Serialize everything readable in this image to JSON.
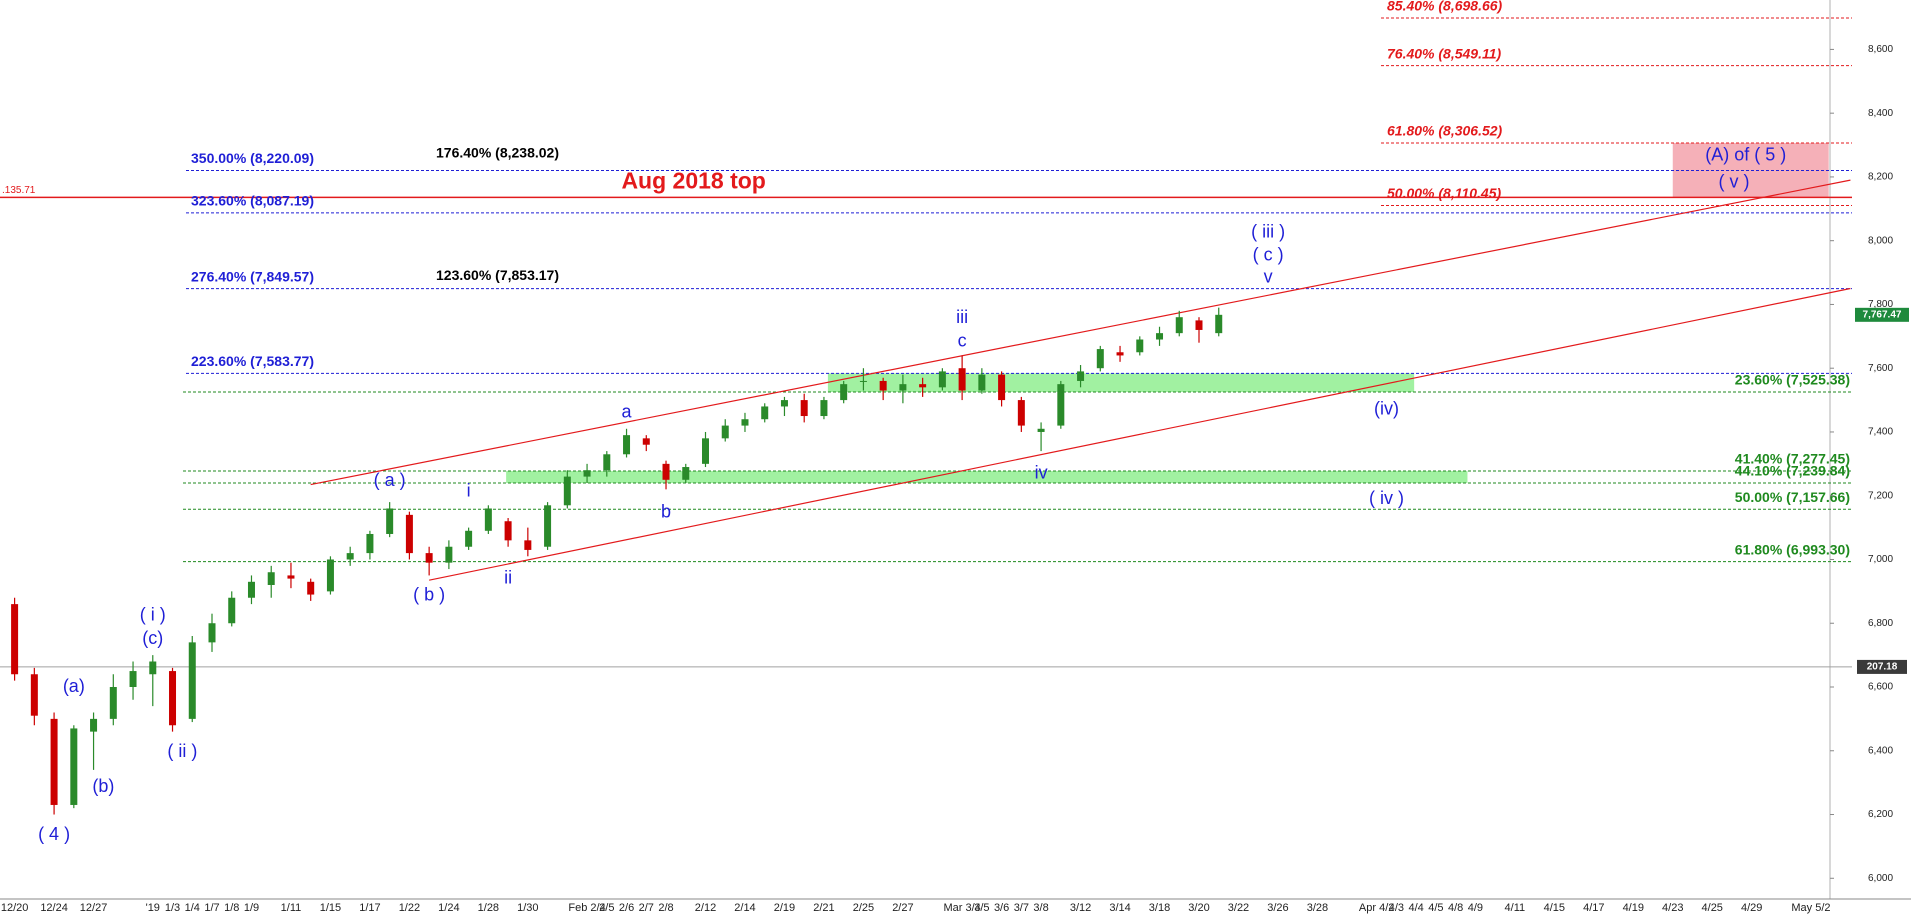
{
  "chart_data": {
    "type": "candlestick",
    "categories": [
      "12/20",
      null,
      "12/24",
      null,
      "12/27",
      null,
      null,
      "'19",
      "1/3",
      "1/4",
      "1/7",
      "1/8",
      "1/9",
      null,
      "1/11",
      null,
      "1/15",
      null,
      "1/17",
      null,
      "1/22",
      null,
      "1/24",
      null,
      "1/28",
      null,
      "1/30",
      null,
      null,
      "Feb 2/4",
      "2/5",
      "2/6",
      "2/7",
      "2/8",
      null,
      "2/12",
      null,
      "2/14",
      null,
      "2/19",
      null,
      "2/21",
      null,
      "2/25",
      null,
      "2/27",
      null,
      null,
      "Mar 3/4",
      "3/5",
      "3/6",
      "3/7",
      "3/8",
      null,
      "3/12",
      null,
      "3/14",
      null,
      "3/18",
      null,
      "3/20",
      null,
      "3/22",
      null,
      "3/26",
      null,
      "3/28",
      null,
      null,
      "Apr 4/2",
      "4/3",
      "4/4",
      "4/5",
      "4/8",
      "4/9",
      null,
      "4/11",
      null,
      "4/15",
      null,
      "4/17",
      null,
      "4/19",
      null,
      "4/23",
      null,
      "4/25",
      null,
      "4/29",
      null,
      null,
      "May 5/2"
    ],
    "open": [
      6860,
      6640,
      6500,
      6230,
      6460,
      6500,
      6600,
      6640,
      6650,
      6500,
      6740,
      6800,
      6880,
      6920,
      6950,
      6930,
      6900,
      7000,
      7020,
      7080,
      7140,
      7020,
      6990,
      7040,
      7090,
      7120,
      7060,
      7040,
      7170,
      7260,
      7280,
      7330,
      7380,
      7300,
      7250,
      7300,
      7380,
      7420,
      7440,
      7480,
      7500,
      7450,
      7500,
      7560,
      7560,
      7530,
      7550,
      7540,
      7600,
      7530,
      7580,
      7500,
      7400,
      7420,
      7560,
      7600,
      7650,
      7650,
      7690,
      7710,
      7750,
      7710,
      null,
      null,
      null,
      null,
      null,
      null,
      null,
      null,
      null,
      null,
      null,
      null,
      null,
      null,
      null,
      null,
      null,
      null,
      null,
      null,
      null,
      null,
      null,
      null,
      null,
      null,
      null,
      null,
      null,
      null
    ],
    "high": [
      6880,
      6660,
      6520,
      6480,
      6520,
      6640,
      6680,
      6700,
      6660,
      6760,
      6830,
      6900,
      6950,
      6980,
      6990,
      6940,
      7010,
      7040,
      7090,
      7180,
      7150,
      7040,
      7060,
      7100,
      7170,
      7130,
      7100,
      7180,
      7280,
      7300,
      7340,
      7410,
      7390,
      7310,
      7300,
      7400,
      7440,
      7460,
      7490,
      7510,
      7520,
      7510,
      7560,
      7600,
      7570,
      7580,
      7570,
      7600,
      7640,
      7600,
      7590,
      7510,
      7430,
      7560,
      7610,
      7670,
      7670,
      7700,
      7730,
      7780,
      7760,
      7790,
      null,
      null,
      null,
      null,
      null,
      null,
      null,
      null,
      null,
      null,
      null,
      null,
      null,
      null,
      null,
      null,
      null,
      null,
      null,
      null,
      null,
      null,
      null,
      null,
      null,
      null,
      null,
      null,
      null,
      null
    ],
    "low": [
      6620,
      6480,
      6200,
      6220,
      6340,
      6480,
      6560,
      6540,
      6460,
      6490,
      6710,
      6790,
      6860,
      6880,
      6910,
      6870,
      6890,
      6980,
      7000,
      7070,
      7000,
      6950,
      6970,
      7030,
      7080,
      7040,
      7010,
      7030,
      7160,
      7240,
      7260,
      7320,
      7340,
      7220,
      7240,
      7290,
      7370,
      7400,
      7430,
      7450,
      7430,
      7440,
      7490,
      7530,
      7500,
      7490,
      7510,
      7530,
      7500,
      7520,
      7480,
      7400,
      7340,
      7410,
      7540,
      7590,
      7620,
      7640,
      7670,
      7700,
      7680,
      7700,
      null,
      null,
      null,
      null,
      null,
      null,
      null,
      null,
      null,
      null,
      null,
      null,
      null,
      null,
      null,
      null,
      null,
      null,
      null,
      null,
      null,
      null,
      null,
      null,
      null,
      null,
      null,
      null,
      null,
      null
    ],
    "close": [
      6640,
      6510,
      6230,
      6470,
      6500,
      6600,
      6650,
      6680,
      6480,
      6740,
      6800,
      6880,
      6930,
      6960,
      6940,
      6890,
      7000,
      7020,
      7080,
      7160,
      7020,
      6990,
      7040,
      7090,
      7160,
      7060,
      7030,
      7170,
      7260,
      7280,
      7330,
      7390,
      7360,
      7250,
      7290,
      7380,
      7420,
      7440,
      7480,
      7500,
      7450,
      7500,
      7550,
      7560,
      7530,
      7550,
      7540,
      7590,
      7530,
      7580,
      7500,
      7420,
      7410,
      7550,
      7590,
      7660,
      7640,
      7690,
      7710,
      7760,
      7720,
      7767.47,
      null,
      null,
      null,
      null,
      null,
      null,
      null,
      null,
      null,
      null,
      null,
      null,
      null,
      null,
      null,
      null,
      null,
      null,
      null,
      null,
      null,
      null,
      null,
      null,
      null,
      null,
      null,
      null,
      null,
      null
    ],
    "up_color": "#2a8a2a",
    "down_color": "#cc0000",
    "ylim": [
      5935,
      8755
    ],
    "yticks": [
      {
        "value": 6000,
        "label": "6,000"
      },
      {
        "value": 6200,
        "label": "6,200"
      },
      {
        "value": 6400,
        "label": "6,400"
      },
      {
        "value": 6600,
        "label": "6,600"
      },
      {
        "value": 6800,
        "label": "6,800"
      },
      {
        "value": 7000,
        "label": "7,000"
      },
      {
        "value": 7200,
        "label": "7,200"
      },
      {
        "value": 7400,
        "label": "7,400"
      },
      {
        "value": 7600,
        "label": "7,600"
      },
      {
        "value": 7800,
        "label": "7,800"
      },
      {
        "value": 8000,
        "label": "8,000"
      },
      {
        "value": 8200,
        "label": "8,200"
      },
      {
        "value": 8400,
        "label": "8,400"
      },
      {
        "value": 8600,
        "label": "8,600"
      }
    ],
    "last_price": {
      "value": 7767.47,
      "label": "7,767.47",
      "color": "#1e8a3c"
    },
    "ref_lines": [
      {
        "value": 8135.71,
        "color": "#e31a1c",
        "tag": ".135.71"
      },
      {
        "value": 6663,
        "color": "#a0a0a0",
        "tag": "207.18"
      }
    ],
    "fib_groups": [
      {
        "color": "#1f1fd6",
        "line": true,
        "levels": [
          {
            "value": 8220.09,
            "label": "350.00% (8,220.09)"
          },
          {
            "value": 8087.19,
            "label": "323.60% (8,087.19)"
          },
          {
            "value": 7849.57,
            "label": "276.40% (7,849.57)"
          },
          {
            "value": 7583.77,
            "label": "223.60% (7,583.77)"
          }
        ]
      },
      {
        "color": "#000000",
        "line": false,
        "levels": [
          {
            "value": 8238.02,
            "label": "176.40% (8,238.02)"
          },
          {
            "value": 7853.17,
            "label": "123.60% (7,853.17)"
          }
        ]
      },
      {
        "color": "#e31a1c",
        "line": true,
        "levels": [
          {
            "value": 8698.66,
            "label": "85.40% (8,698.66)"
          },
          {
            "value": 8549.11,
            "label": "76.40% (8,549.11)"
          },
          {
            "value": 8306.52,
            "label": "61.80% (8,306.52)"
          },
          {
            "value": 8110.45,
            "label": "50.00% (8,110.45)"
          }
        ]
      },
      {
        "color": "#1f8a1f",
        "line": true,
        "levels": [
          {
            "value": 7525.38,
            "label": "23.60% (7,525.38)"
          },
          {
            "value": 7277.45,
            "label": "41.40% (7,277.45)"
          },
          {
            "value": 7239.84,
            "label": "44.10% (7,239.84)"
          },
          {
            "value": 7157.66,
            "label": "50.00% (7,157.66)"
          },
          {
            "value": 6993.3,
            "label": "61.80% (6,993.30)"
          }
        ]
      }
    ],
    "channel_color": "#e31a1c",
    "channel": [
      {
        "from": [
          15,
          7235
        ],
        "to": [
          93,
          8190
        ]
      },
      {
        "from": [
          21,
          6935
        ],
        "to": [
          93,
          7850
        ]
      }
    ],
    "waves": [
      {
        "text": "( 4 )",
        "at": 2,
        "price": 6135
      },
      {
        "text": "(a)",
        "at": 3,
        "price": 6600
      },
      {
        "text": "(b)",
        "at": 4.5,
        "price": 6285
      },
      {
        "text": "( i )",
        "at": 7,
        "price": 6824
      },
      {
        "text": "(c)",
        "at": 7,
        "price": 6750
      },
      {
        "text": "( ii )",
        "at": 8.5,
        "price": 6395
      },
      {
        "text": "( a )",
        "at": 19,
        "price": 7246
      },
      {
        "text": "( b )",
        "at": 21,
        "price": 6886
      },
      {
        "text": "i",
        "at": 23,
        "price": 7212
      },
      {
        "text": "ii",
        "at": 25,
        "price": 6940
      },
      {
        "text": "a",
        "at": 31,
        "price": 7461
      },
      {
        "text": "b",
        "at": 33,
        "price": 7147
      },
      {
        "text": "iii",
        "at": 48,
        "price": 7756
      },
      {
        "text": "c",
        "at": 48,
        "price": 7683
      },
      {
        "text": "iv",
        "at": 52,
        "price": 7269
      },
      {
        "text": "( iii )",
        "at": 63.5,
        "price": 8025
      },
      {
        "text": "( c )",
        "at": 63.5,
        "price": 7952
      },
      {
        "text": "v",
        "at": 63.5,
        "price": 7883
      },
      {
        "text": "(iv)",
        "at": 69.5,
        "price": 7469
      },
      {
        "text": "( iv )",
        "at": 69.5,
        "price": 7189
      },
      {
        "text": "(A) of ( 5 )",
        "at": 87.7,
        "price": 8266
      },
      {
        "text": "( v )",
        "at": 87.1,
        "price": 8182
      },
      {
        "text": "Aug 2018 top",
        "at": 34.4,
        "price": 8182,
        "emphasis": true
      }
    ],
    "wave_color": "#1f1fd6",
    "zone_color": "#90ee90",
    "target_color": "#f4a7b0"
  }
}
